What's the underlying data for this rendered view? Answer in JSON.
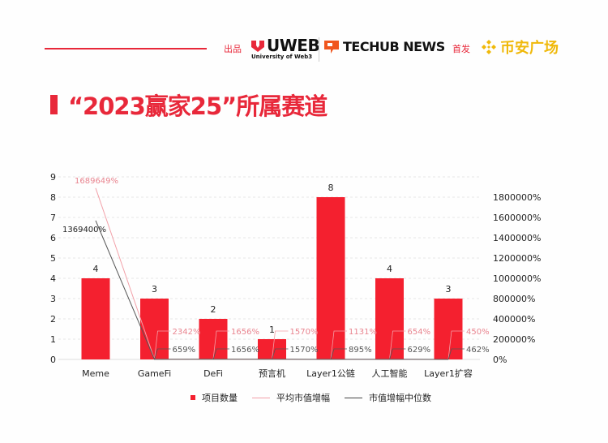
{
  "header": {
    "produced_by_label": "出品",
    "uweb_logo": "UWEB",
    "uweb_sub": "University of Web3",
    "techub_logo": "TECHUB NEWS",
    "first_release_label": "首发",
    "binance_logo": "币安广场"
  },
  "title": "“2023赢家25”所属赛道",
  "colors": {
    "bar": "#f4202f",
    "avg_line": "#f2a0a8",
    "median_line": "#555555",
    "accent": "#e8283a"
  },
  "chart_data": {
    "type": "bar+line",
    "categories": [
      "Meme",
      "GameFi",
      "DeFi",
      "预言机",
      "Layer1公链",
      "人工智能",
      "Layer1扩容"
    ],
    "left_axis": {
      "ylim": [
        0,
        9
      ],
      "ticks": [
        "0",
        "1",
        "2",
        "3",
        "4",
        "5",
        "6",
        "7",
        "8",
        "9"
      ]
    },
    "right_axis": {
      "ylim": [
        0,
        1800000
      ],
      "ticks": [
        "0%",
        "200000%",
        "400000%",
        "800000%",
        "1000000%",
        "1200000%",
        "1400000%",
        "1600000%",
        "1800000%"
      ]
    },
    "grid": true,
    "legend_position": "bottom",
    "series": [
      {
        "name": "项目数量",
        "type": "bar",
        "axis": "left",
        "values": [
          4,
          3,
          2,
          1,
          8,
          4,
          3
        ],
        "labels": [
          "4",
          "3",
          "2",
          "1",
          "8",
          "4",
          "3"
        ]
      },
      {
        "name": "平均市值增幅",
        "type": "line",
        "axis": "right",
        "values": [
          1689649,
          2342,
          1656,
          1570,
          1131,
          654,
          450
        ],
        "labels": [
          "1689649%",
          "2342%",
          "1656%",
          "1570%",
          "1131%",
          "654%",
          "450%"
        ]
      },
      {
        "name": "市值增幅中位数",
        "type": "line",
        "axis": "right",
        "values": [
          1369400,
          659,
          1656,
          1570,
          895,
          629,
          462
        ],
        "labels": [
          "1369400%",
          "659%",
          "1656%",
          "1570%",
          "895%",
          "629%",
          "462%"
        ]
      }
    ]
  }
}
